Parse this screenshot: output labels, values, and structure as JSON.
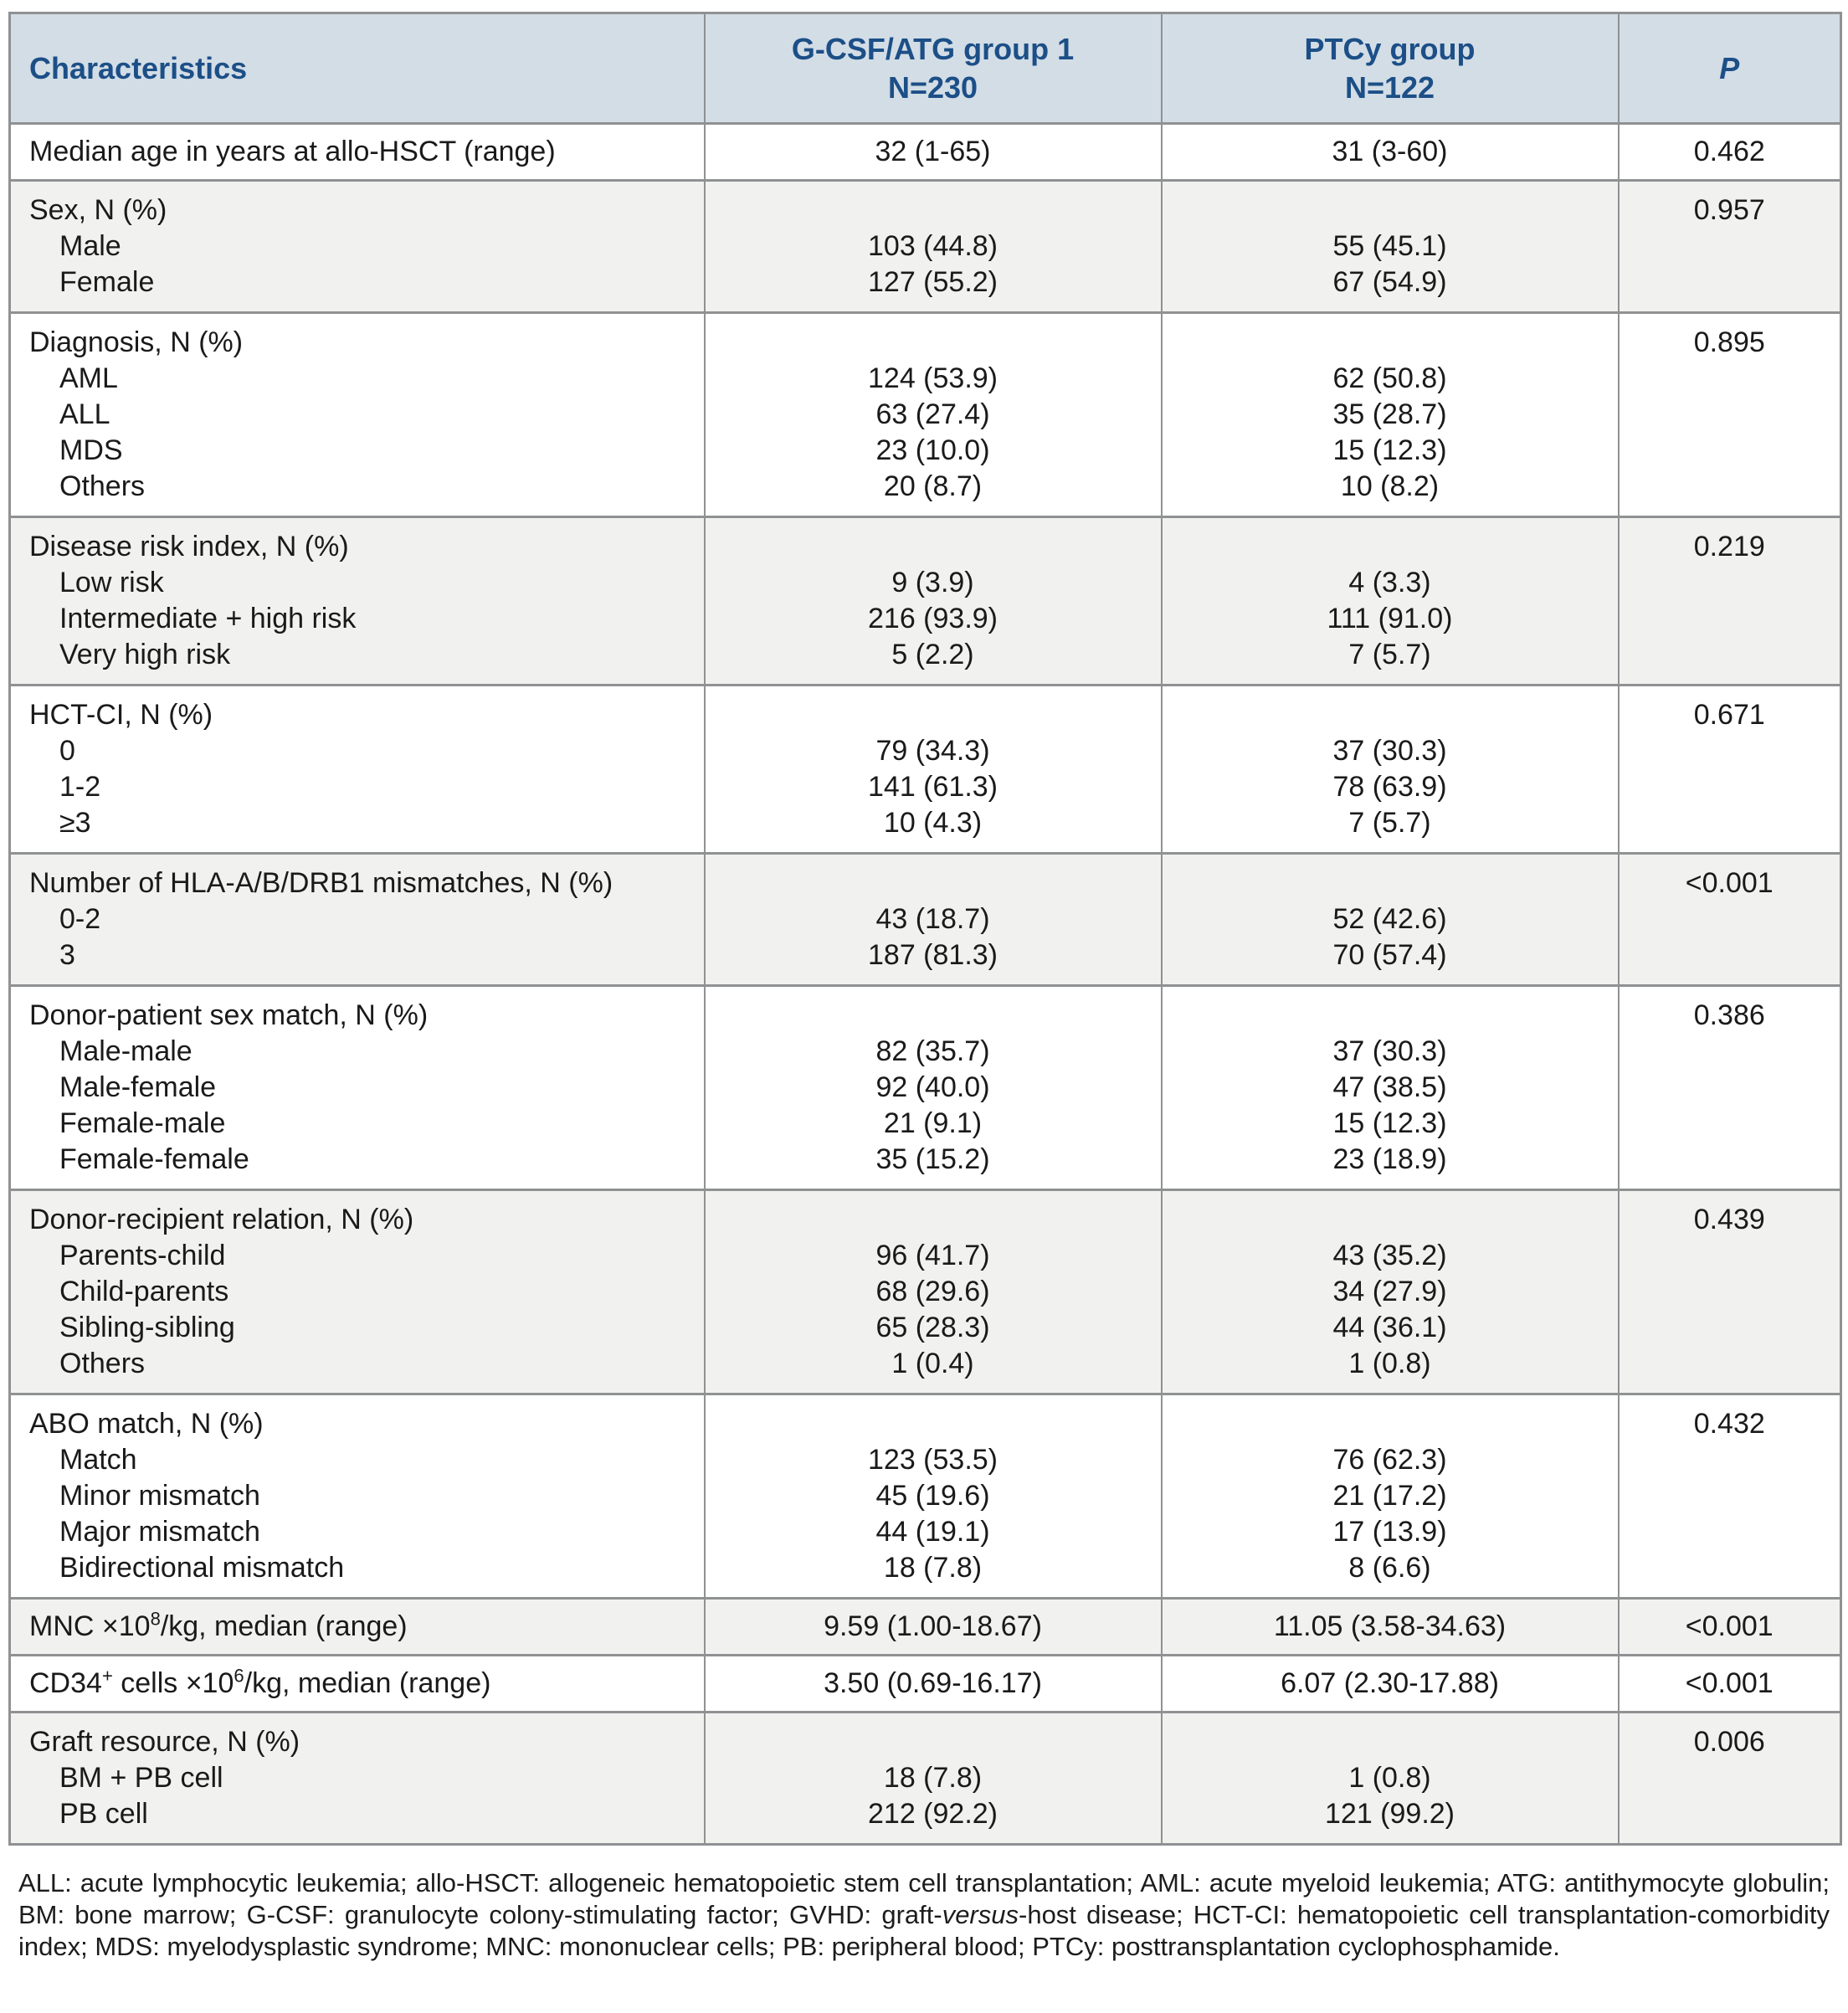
{
  "colors": {
    "header_bg": "#d3dde6",
    "header_text": "#1c4f87",
    "band_bg": "#f1f1f0",
    "border": "#8f9193",
    "text": "#1a1a1a"
  },
  "header": {
    "characteristics": "Characteristics",
    "group1": {
      "name": "G-CSF/ATG group 1",
      "n": "N=230"
    },
    "group2": {
      "name": "PTCy group",
      "n": "N=122"
    },
    "p": "P"
  },
  "sections": [
    {
      "type": "single",
      "label": "Median age in years at allo-HSCT (range)",
      "group1": "32 (1-65)",
      "group2": "31 (3-60)",
      "p": "0.462"
    },
    {
      "type": "group",
      "label": "Sex, N (%)",
      "p": "0.957",
      "items": [
        {
          "name": "Male",
          "group1": "103 (44.8)",
          "group2": "55 (45.1)"
        },
        {
          "name": "Female",
          "group1": "127 (55.2)",
          "group2": "67 (54.9)"
        }
      ]
    },
    {
      "type": "group",
      "label": "Diagnosis, N (%)",
      "p": "0.895",
      "items": [
        {
          "name": "AML",
          "group1": "124 (53.9)",
          "group2": "62 (50.8)"
        },
        {
          "name": "ALL",
          "group1": "63 (27.4)",
          "group2": "35 (28.7)"
        },
        {
          "name": "MDS",
          "group1": "23 (10.0)",
          "group2": "15 (12.3)"
        },
        {
          "name": "Others",
          "group1": "20 (8.7)",
          "group2": "10 (8.2)"
        }
      ]
    },
    {
      "type": "group",
      "label": "Disease risk index, N (%)",
      "p": "0.219",
      "items": [
        {
          "name": "Low risk",
          "group1": "9 (3.9)",
          "group2": "4 (3.3)"
        },
        {
          "name": "Intermediate + high risk",
          "group1": "216 (93.9)",
          "group2": "111 (91.0)"
        },
        {
          "name": "Very high risk",
          "group1": "5 (2.2)",
          "group2": "7 (5.7)"
        }
      ]
    },
    {
      "type": "group",
      "label": "HCT-CI, N (%)",
      "p": "0.671",
      "items": [
        {
          "name": "0",
          "group1": "79 (34.3)",
          "group2": "37 (30.3)"
        },
        {
          "name": "1-2",
          "group1": "141 (61.3)",
          "group2": "78 (63.9)"
        },
        {
          "name": "≥3",
          "group1": "10 (4.3)",
          "group2": "7 (5.7)"
        }
      ]
    },
    {
      "type": "group",
      "label": "Number of HLA-A/B/DRB1 mismatches, N (%)",
      "p": "<0.001",
      "items": [
        {
          "name": "0-2",
          "group1": "43 (18.7)",
          "group2": "52 (42.6)"
        },
        {
          "name": "3",
          "group1": "187 (81.3)",
          "group2": "70 (57.4)"
        }
      ]
    },
    {
      "type": "group",
      "label": "Donor-patient sex match, N (%)",
      "p": "0.386",
      "items": [
        {
          "name": "Male-male",
          "group1": "82 (35.7)",
          "group2": "37 (30.3)"
        },
        {
          "name": "Male-female",
          "group1": "92 (40.0)",
          "group2": "47 (38.5)"
        },
        {
          "name": "Female-male",
          "group1": "21 (9.1)",
          "group2": "15 (12.3)"
        },
        {
          "name": "Female-female",
          "group1": "35 (15.2)",
          "group2": "23 (18.9)"
        }
      ]
    },
    {
      "type": "group",
      "label": "Donor-recipient relation, N (%)",
      "p": "0.439",
      "items": [
        {
          "name": "Parents-child",
          "group1": "96 (41.7)",
          "group2": "43 (35.2)"
        },
        {
          "name": "Child-parents",
          "group1": "68 (29.6)",
          "group2": "34 (27.9)"
        },
        {
          "name": "Sibling-sibling",
          "group1": "65 (28.3)",
          "group2": "44 (36.1)"
        },
        {
          "name": "Others",
          "group1": "1 (0.4)",
          "group2": "1 (0.8)"
        }
      ]
    },
    {
      "type": "group",
      "label": "ABO match, N (%)",
      "p": "0.432",
      "items": [
        {
          "name": "Match",
          "group1": "123 (53.5)",
          "group2": "76 (62.3)"
        },
        {
          "name": "Minor mismatch",
          "group1": "45 (19.6)",
          "group2": "21 (17.2)"
        },
        {
          "name": "Major mismatch",
          "group1": "44 (19.1)",
          "group2": "17 (13.9)"
        },
        {
          "name": "Bidirectional mismatch",
          "group1": "18 (7.8)",
          "group2": "8 (6.6)"
        }
      ]
    },
    {
      "type": "single",
      "label_html": "MNC ×10<sup>8</sup>/kg, median (range)",
      "group1": "9.59 (1.00-18.67)",
      "group2": "11.05 (3.58-34.63)",
      "p": "<0.001"
    },
    {
      "type": "single",
      "label_html": "CD34<sup>+</sup> cells ×10<sup>6</sup>/kg, median (range)",
      "group1": "3.50 (0.69-16.17)",
      "group2": "6.07 (2.30-17.88)",
      "p": "<0.001"
    },
    {
      "type": "group",
      "label": "Graft resource, N (%)",
      "p": "0.006",
      "items": [
        {
          "name": "BM + PB cell",
          "group1": "18 (7.8)",
          "group2": "1 (0.8)"
        },
        {
          "name": "PB cell",
          "group1": "212 (92.2)",
          "group2": "121 (99.2)"
        }
      ]
    }
  ],
  "footnote_html": "ALL: acute lymphocytic leukemia; allo-HSCT: allogeneic hematopoietic stem cell transplantation; AML: acute myeloid leukemia; ATG: antithymocyte globulin; BM: bone marrow; G-CSF: granulocyte colony-stimulating factor; GVHD: graft-<i>versus</i>-host disease; HCT-CI: hematopoietic cell transplantation-comorbidity index; MDS: myelodysplastic syndrome; MNC: mononuclear cells; PB: peripheral blood; PTCy: posttransplantation cyclophosphamide."
}
